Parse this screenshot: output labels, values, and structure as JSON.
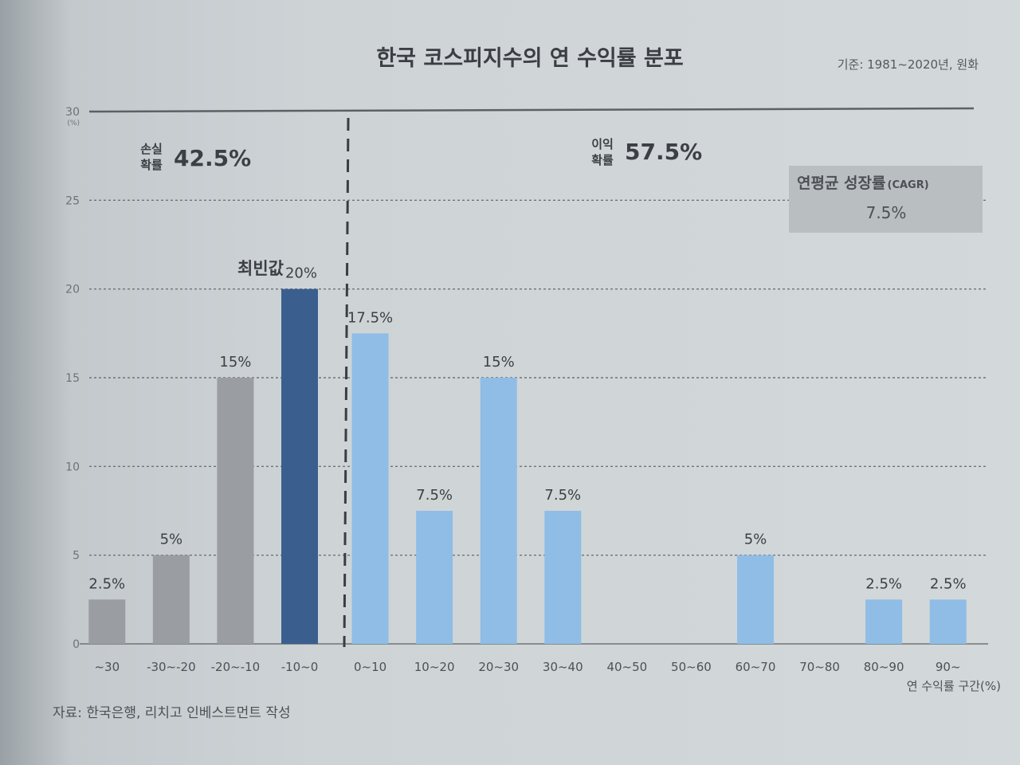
{
  "header": {
    "title": "한국 코스피지수의 연 수익률 분포",
    "basis": "기준: 1981~2020년, 원화"
  },
  "annotations": {
    "loss_label_line1": "손실",
    "loss_label_line2": "확률",
    "loss_value": "42.5%",
    "gain_label_line1": "이익",
    "gain_label_line2": "확률",
    "gain_value": "57.5%",
    "mode_label": "최빈값",
    "cagr_title": "연평균 성장률",
    "cagr_unit": "(CAGR)",
    "cagr_value": "7.5%"
  },
  "source": "자료: 한국은행, 리치고 인베스트먼트 작성",
  "colors": {
    "loss": "#9a9ea2",
    "mode": "#3a5f8f",
    "gain": "#8fbde5",
    "grid": "#6f7377",
    "box": "#b7bcbf"
  },
  "chart_data": {
    "type": "bar",
    "title": "한국 코스피지수의 연 수익률 분포",
    "xlabel": "연 수익률 구간(%)",
    "ylabel": "(%)",
    "ylim": [
      0,
      30
    ],
    "yticks": [
      0,
      5,
      10,
      15,
      20,
      25,
      30
    ],
    "grid": true,
    "categories": [
      "~30",
      "-30~-20",
      "-20~-10",
      "-10~0",
      "0~10",
      "10~20",
      "20~30",
      "30~40",
      "40~50",
      "50~60",
      "60~70",
      "70~80",
      "80~90",
      "90~"
    ],
    "values": [
      2.5,
      5,
      15,
      20,
      17.5,
      7.5,
      15,
      7.5,
      0,
      0,
      5,
      0,
      2.5,
      2.5
    ],
    "data_labels": [
      "2.5%",
      "5%",
      "15%",
      "20%",
      "17.5%",
      "7.5%",
      "15%",
      "7.5%",
      "",
      "",
      "5%",
      "",
      "2.5%",
      "2.5%"
    ],
    "bar_groups": [
      "loss",
      "loss",
      "loss",
      "mode",
      "gain",
      "gain",
      "gain",
      "gain",
      "gain",
      "gain",
      "gain",
      "gain",
      "gain",
      "gain"
    ]
  }
}
